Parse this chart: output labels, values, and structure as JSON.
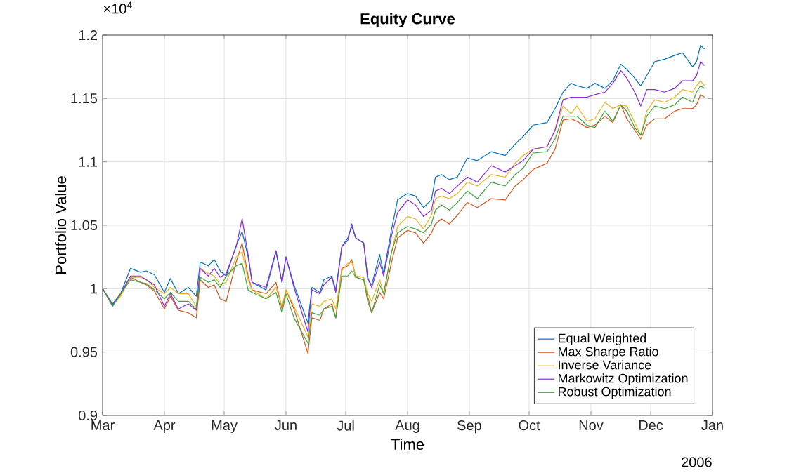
{
  "chart_data": {
    "type": "line",
    "title": "Equity Curve",
    "xlabel": "Time",
    "ylabel": "Portfolio Value",
    "annotations": [
      "×10$^{4}$",
      "2006"
    ],
    "x": [
      "2006-03-01",
      "2006-03-06",
      "2006-03-10",
      "2006-03-15",
      "2006-03-20",
      "2006-03-23",
      "2006-03-27",
      "2006-04-01",
      "2006-04-04",
      "2006-04-08",
      "2006-04-13",
      "2006-04-17",
      "2006-04-19",
      "2006-04-23",
      "2006-04-26",
      "2006-04-29",
      "2006-05-02",
      "2006-05-07",
      "2006-05-10",
      "2006-05-13",
      "2006-05-15",
      "2006-05-22",
      "2006-05-27",
      "2006-05-30",
      "2006-06-01",
      "2006-06-05",
      "2006-06-12",
      "2006-06-14",
      "2006-06-18",
      "2006-06-20",
      "2006-06-24",
      "2006-06-26",
      "2006-06-29",
      "2006-07-02",
      "2006-07-04",
      "2006-07-06",
      "2006-07-10",
      "2006-07-12",
      "2006-07-14",
      "2006-07-18",
      "2006-07-20",
      "2006-07-24",
      "2006-07-27",
      "2006-08-01",
      "2006-08-05",
      "2006-08-09",
      "2006-08-13",
      "2006-08-15",
      "2006-08-18",
      "2006-08-22",
      "2006-08-26",
      "2006-08-31",
      "2006-09-05",
      "2006-09-12",
      "2006-09-19",
      "2006-09-24",
      "2006-09-28",
      "2006-10-03",
      "2006-10-10",
      "2006-10-14",
      "2006-10-18",
      "2006-10-22",
      "2006-10-25",
      "2006-10-30",
      "2006-11-03",
      "2006-11-08",
      "2006-11-12",
      "2006-11-16",
      "2006-11-19",
      "2006-11-23",
      "2006-11-26",
      "2006-11-29",
      "2006-12-03",
      "2006-12-08",
      "2006-12-13",
      "2006-12-17",
      "2006-12-22",
      "2006-12-24",
      "2006-12-26",
      "2006-12-28"
    ],
    "series": [
      {
        "name": "Equal Weighted",
        "color": "#0072bd",
        "values": [
          1.0,
          0.988,
          0.996,
          1.016,
          1.013,
          1.014,
          1.011,
          0.997,
          1.008,
          0.996,
          1.001,
          0.994,
          1.021,
          1.018,
          1.023,
          1.014,
          1.01,
          1.034,
          1.045,
          1.025,
          1.005,
          0.999,
          1.029,
          1.005,
          1.025,
          1.003,
          0.973,
          1.001,
          0.997,
          1.007,
          1.01,
          0.999,
          1.033,
          1.04,
          1.049,
          1.04,
          1.036,
          1.007,
          1.003,
          1.027,
          1.012,
          1.047,
          1.07,
          1.075,
          1.073,
          1.064,
          1.07,
          1.088,
          1.09,
          1.086,
          1.088,
          1.103,
          1.101,
          1.108,
          1.105,
          1.114,
          1.12,
          1.129,
          1.131,
          1.142,
          1.155,
          1.162,
          1.16,
          1.158,
          1.162,
          1.158,
          1.164,
          1.177,
          1.173,
          1.166,
          1.16,
          1.168,
          1.179,
          1.181,
          1.184,
          1.186,
          1.175,
          1.179,
          1.192,
          1.189
        ]
      },
      {
        "name": "Max Sharpe Ratio",
        "color": "#d95319",
        "values": [
          1.0,
          0.987,
          0.995,
          1.009,
          1.005,
          1.003,
          0.998,
          0.984,
          0.994,
          0.983,
          0.981,
          0.977,
          1.007,
          1.001,
          1.003,
          0.992,
          0.99,
          1.021,
          1.036,
          1.01,
          0.999,
          0.996,
          1.005,
          0.984,
          0.999,
          0.984,
          0.949,
          0.977,
          0.975,
          0.984,
          0.988,
          0.977,
          1.016,
          1.018,
          1.023,
          1.009,
          1.007,
          0.994,
          0.981,
          0.997,
          0.992,
          1.021,
          1.04,
          1.046,
          1.044,
          1.036,
          1.044,
          1.051,
          1.055,
          1.051,
          1.058,
          1.068,
          1.064,
          1.071,
          1.07,
          1.081,
          1.086,
          1.094,
          1.099,
          1.11,
          1.133,
          1.134,
          1.132,
          1.127,
          1.129,
          1.136,
          1.131,
          1.145,
          1.134,
          1.125,
          1.118,
          1.129,
          1.134,
          1.134,
          1.14,
          1.142,
          1.142,
          1.145,
          1.153,
          1.151
        ]
      },
      {
        "name": "Inverse Variance",
        "color": "#edb120",
        "values": [
          1.0,
          0.987,
          0.994,
          1.009,
          1.009,
          1.007,
          1.001,
          0.996,
          1.001,
          0.996,
          0.996,
          0.986,
          1.016,
          1.012,
          1.01,
          1.003,
          1.005,
          1.025,
          1.029,
          1.007,
          0.999,
          0.992,
          1.001,
          0.986,
          0.999,
          0.986,
          0.962,
          0.988,
          0.986,
          0.99,
          0.992,
          0.984,
          1.014,
          1.02,
          1.021,
          1.01,
          1.009,
          0.996,
          0.99,
          1.007,
          0.996,
          1.029,
          1.049,
          1.057,
          1.055,
          1.047,
          1.058,
          1.071,
          1.073,
          1.071,
          1.075,
          1.084,
          1.081,
          1.09,
          1.088,
          1.099,
          1.105,
          1.11,
          1.112,
          1.125,
          1.144,
          1.138,
          1.144,
          1.132,
          1.134,
          1.147,
          1.142,
          1.145,
          1.144,
          1.131,
          1.121,
          1.14,
          1.149,
          1.147,
          1.151,
          1.157,
          1.155,
          1.16,
          1.164,
          1.16
        ]
      },
      {
        "name": "Markowitz Optimization",
        "color": "#8a2be2",
        "values": [
          1.0,
          0.987,
          0.996,
          1.01,
          1.01,
          1.007,
          1.003,
          0.986,
          0.996,
          0.984,
          0.988,
          0.983,
          1.016,
          1.01,
          1.016,
          1.009,
          1.012,
          1.033,
          1.055,
          1.027,
          1.005,
          1.001,
          1.03,
          1.005,
          1.025,
          1.001,
          0.966,
          0.999,
          0.996,
          1.003,
          1.009,
          0.997,
          1.033,
          1.038,
          1.051,
          1.04,
          1.036,
          1.009,
          1.001,
          1.021,
          1.01,
          1.042,
          1.06,
          1.07,
          1.066,
          1.057,
          1.062,
          1.077,
          1.079,
          1.075,
          1.081,
          1.088,
          1.084,
          1.097,
          1.092,
          1.097,
          1.101,
          1.11,
          1.112,
          1.125,
          1.149,
          1.151,
          1.151,
          1.151,
          1.153,
          1.155,
          1.162,
          1.172,
          1.166,
          1.155,
          1.144,
          1.157,
          1.157,
          1.155,
          1.158,
          1.164,
          1.164,
          1.168,
          1.179,
          1.176
        ]
      },
      {
        "name": "Robust Optimization",
        "color": "#3fa33f",
        "values": [
          1.0,
          0.986,
          0.996,
          1.007,
          1.005,
          1.004,
          0.999,
          0.992,
          0.997,
          0.99,
          0.99,
          0.984,
          1.009,
          1.005,
          1.007,
          1.001,
          1.01,
          1.018,
          1.02,
          0.999,
          0.997,
          0.992,
          0.997,
          0.981,
          0.996,
          0.977,
          0.957,
          0.981,
          0.979,
          0.984,
          0.986,
          0.977,
          1.01,
          1.01,
          1.014,
          1.009,
          1.007,
          0.99,
          0.981,
          1.003,
          0.996,
          1.029,
          1.044,
          1.049,
          1.047,
          1.044,
          1.051,
          1.062,
          1.066,
          1.062,
          1.068,
          1.077,
          1.071,
          1.084,
          1.081,
          1.09,
          1.095,
          1.107,
          1.108,
          1.118,
          1.136,
          1.136,
          1.136,
          1.129,
          1.127,
          1.14,
          1.132,
          1.145,
          1.14,
          1.127,
          1.121,
          1.136,
          1.144,
          1.142,
          1.145,
          1.151,
          1.147,
          1.155,
          1.16,
          1.158
        ]
      }
    ],
    "xlim": [
      "2006-03-01",
      "2007-01-01"
    ],
    "xticks": [
      {
        "value": "2006-03-01",
        "label": "Mar"
      },
      {
        "value": "2006-04-01",
        "label": "Apr"
      },
      {
        "value": "2006-05-01",
        "label": "May"
      },
      {
        "value": "2006-06-01",
        "label": "Jun"
      },
      {
        "value": "2006-07-01",
        "label": "Jul"
      },
      {
        "value": "2006-08-01",
        "label": "Aug"
      },
      {
        "value": "2006-09-01",
        "label": "Sep"
      },
      {
        "value": "2006-10-01",
        "label": "Oct"
      },
      {
        "value": "2006-11-01",
        "label": "Nov"
      },
      {
        "value": "2006-12-01",
        "label": "Dec"
      },
      {
        "value": "2007-01-01",
        "label": "Jan"
      }
    ],
    "ylim": [
      0.9,
      1.2
    ],
    "yticks": [
      0.9,
      0.95,
      1,
      1.05,
      1.1,
      1.15,
      1.2
    ],
    "grid": true,
    "legend": "bottom right",
    "line_style": "solid"
  }
}
